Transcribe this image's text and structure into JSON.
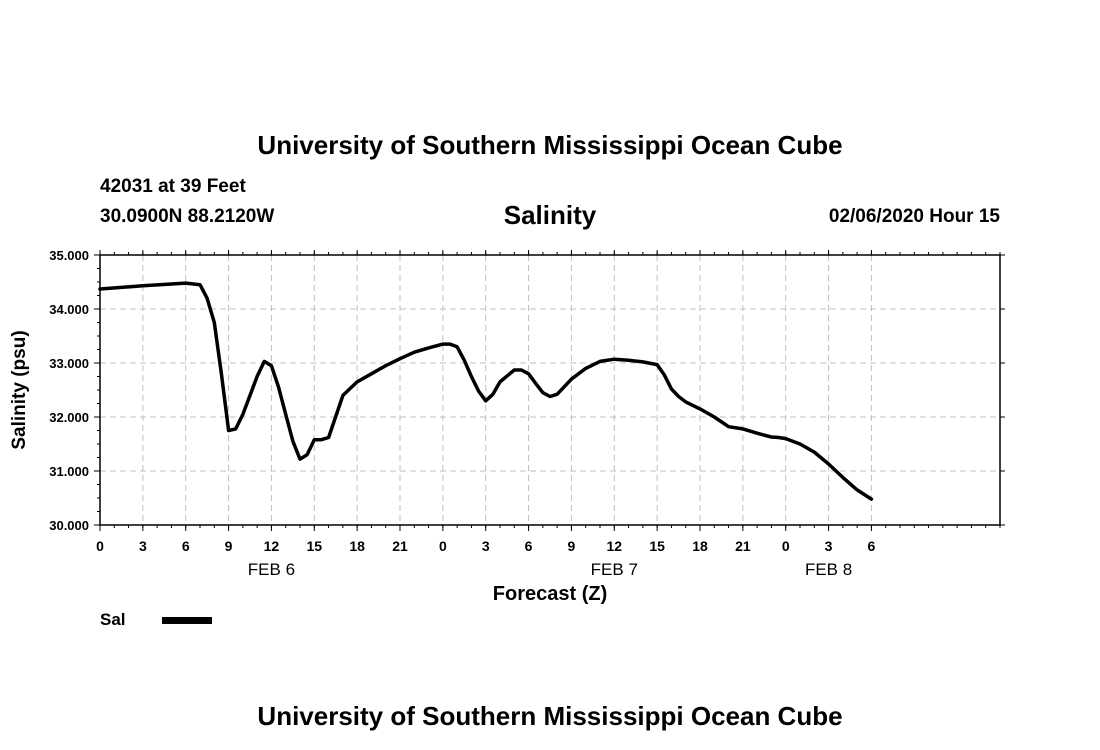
{
  "header": {
    "title": "University of Southern Mississippi Ocean Cube",
    "station": "42031 at 39 Feet",
    "location": "30.0900N 88.2120W",
    "chart_title": "Salinity",
    "date": "02/06/2020 Hour 15"
  },
  "footer": {
    "title": "University of Southern Mississippi Ocean Cube"
  },
  "legend": {
    "label": "Sal"
  },
  "colors": {
    "line": "#000000",
    "grid": "#bfbfbf"
  },
  "chart_data": {
    "type": "line",
    "title": "Salinity",
    "xlabel": "Forecast (Z)",
    "ylabel": "Salinity (psu)",
    "xlim": [
      0,
      63
    ],
    "ylim": [
      30,
      35
    ],
    "yticks": [
      "30.000",
      "31.000",
      "32.000",
      "33.000",
      "34.000",
      "35.000"
    ],
    "xticks": [
      {
        "hour": 0,
        "label": "0"
      },
      {
        "hour": 3,
        "label": "3"
      },
      {
        "hour": 6,
        "label": "6"
      },
      {
        "hour": 9,
        "label": "9"
      },
      {
        "hour": 12,
        "label": "12"
      },
      {
        "hour": 15,
        "label": "15"
      },
      {
        "hour": 18,
        "label": "18"
      },
      {
        "hour": 21,
        "label": "21"
      },
      {
        "hour": 24,
        "label": "0"
      },
      {
        "hour": 27,
        "label": "3"
      },
      {
        "hour": 30,
        "label": "6"
      },
      {
        "hour": 33,
        "label": "9"
      },
      {
        "hour": 36,
        "label": "12"
      },
      {
        "hour": 39,
        "label": "15"
      },
      {
        "hour": 42,
        "label": "18"
      },
      {
        "hour": 45,
        "label": "21"
      },
      {
        "hour": 48,
        "label": "0"
      },
      {
        "hour": 51,
        "label": "3"
      },
      {
        "hour": 54,
        "label": "6"
      }
    ],
    "date_labels": [
      {
        "hour": 12,
        "label": "FEB 6"
      },
      {
        "hour": 36,
        "label": "FEB 7"
      },
      {
        "hour": 51,
        "label": "FEB 8"
      }
    ],
    "grid": true,
    "series": [
      {
        "name": "Sal",
        "x": [
          0,
          3,
          6,
          7,
          7.5,
          8,
          8.5,
          9,
          9.5,
          10,
          10.5,
          11,
          11.5,
          12,
          12.5,
          13,
          13.5,
          14,
          14.5,
          15,
          15.5,
          16,
          17,
          18,
          19,
          20,
          21,
          22,
          23,
          24,
          24.5,
          25,
          25.5,
          26,
          26.5,
          27,
          27.5,
          28,
          29,
          29.5,
          30,
          30.5,
          31,
          31.5,
          32,
          33,
          34,
          35,
          36,
          37,
          38,
          39,
          39.5,
          40,
          40.5,
          41,
          42,
          43,
          44,
          45,
          46,
          47,
          47.5,
          48,
          49,
          50,
          51,
          52,
          53,
          54
        ],
        "values": [
          34.37,
          34.43,
          34.48,
          34.45,
          34.2,
          33.75,
          32.8,
          31.75,
          31.78,
          32.05,
          32.4,
          32.75,
          33.03,
          32.95,
          32.55,
          32.05,
          31.55,
          31.22,
          31.3,
          31.58,
          31.58,
          31.62,
          32.4,
          32.65,
          32.8,
          32.95,
          33.08,
          33.2,
          33.28,
          33.35,
          33.35,
          33.3,
          33.05,
          32.75,
          32.48,
          32.3,
          32.42,
          32.65,
          32.87,
          32.87,
          32.8,
          32.62,
          32.45,
          32.38,
          32.42,
          32.7,
          32.9,
          33.03,
          33.07,
          33.05,
          33.02,
          32.97,
          32.78,
          32.52,
          32.38,
          32.28,
          32.15,
          32.0,
          31.82,
          31.78,
          31.7,
          31.63,
          31.62,
          31.6,
          31.5,
          31.35,
          31.13,
          30.88,
          30.65,
          30.48
        ]
      }
    ]
  }
}
